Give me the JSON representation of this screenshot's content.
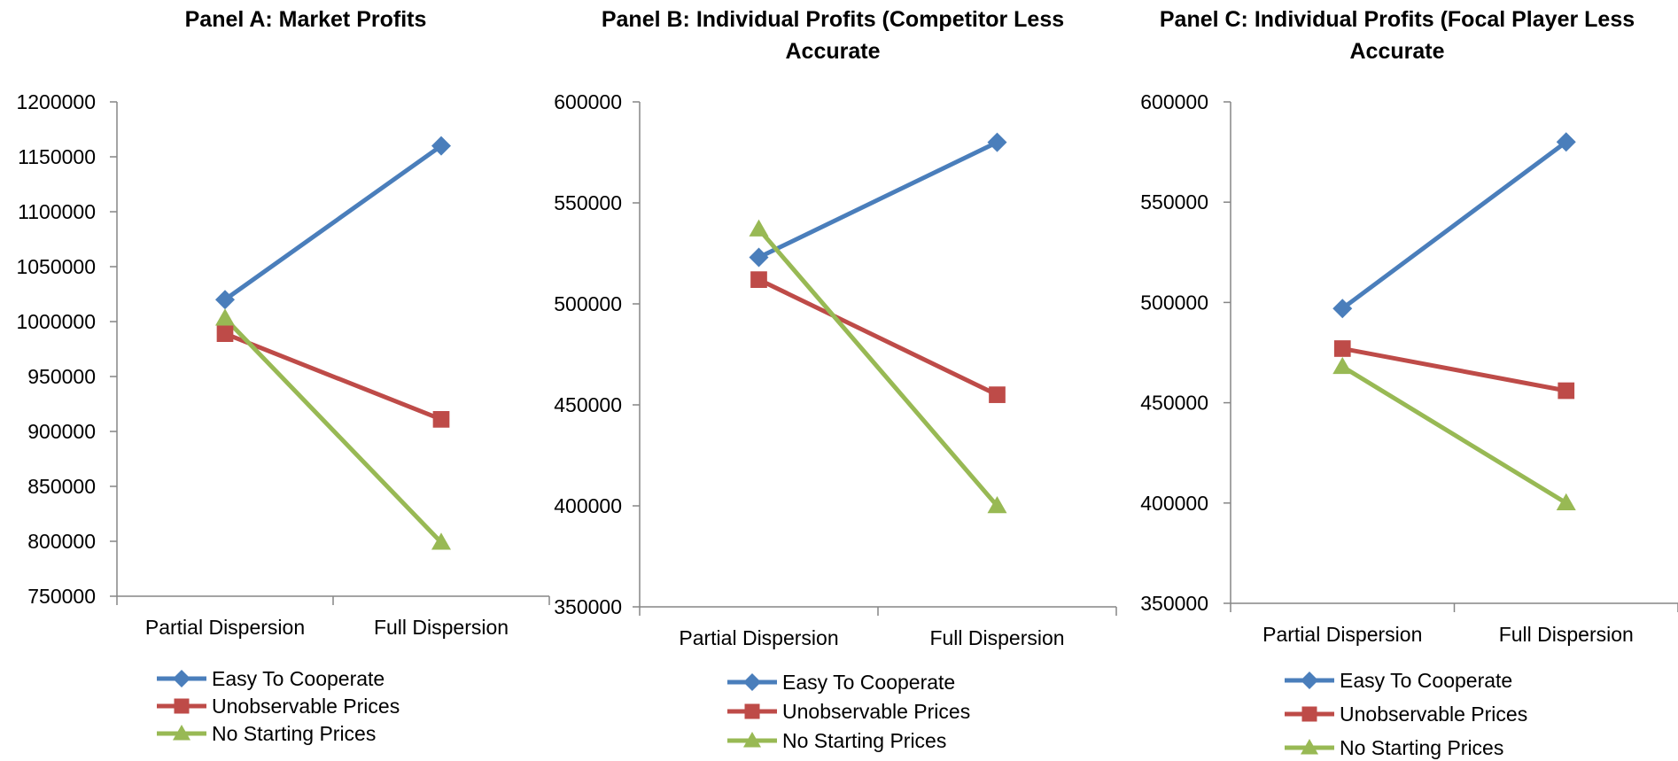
{
  "chart_data": [
    {
      "type": "line",
      "title": "Panel A: Market Profits",
      "categories": [
        "Partial Dispersion",
        "Full Dispersion"
      ],
      "ylim": [
        750000,
        1200000
      ],
      "yticks": [
        750000,
        800000,
        850000,
        900000,
        950000,
        1000000,
        1050000,
        1100000,
        1150000,
        1200000
      ],
      "legend_position": "bottom-left",
      "grid": false,
      "series": [
        {
          "name": "Easy To Cooperate",
          "values": [
            1020000,
            1160000
          ],
          "color": "#4a7ebb",
          "marker": "diamond"
        },
        {
          "name": "Unobservable Prices",
          "values": [
            989000,
            911000
          ],
          "color": "#be4b48",
          "marker": "square"
        },
        {
          "name": "No Starting Prices",
          "values": [
            1003000,
            799000
          ],
          "color": "#98b954",
          "marker": "triangle"
        }
      ]
    },
    {
      "type": "line",
      "title": "Panel B: Individual Profits (Competitor Less Accurate",
      "categories": [
        "Partial Dispersion",
        "Full Dispersion"
      ],
      "ylim": [
        350000,
        600000
      ],
      "yticks": [
        350000,
        400000,
        450000,
        500000,
        550000,
        600000
      ],
      "legend_position": "bottom-left",
      "grid": false,
      "series": [
        {
          "name": "Easy To Cooperate",
          "values": [
            523000,
            580000
          ],
          "color": "#4a7ebb",
          "marker": "diamond"
        },
        {
          "name": "Unobservable Prices",
          "values": [
            512000,
            455000
          ],
          "color": "#be4b48",
          "marker": "square"
        },
        {
          "name": "No Starting Prices",
          "values": [
            537000,
            400000
          ],
          "color": "#98b954",
          "marker": "triangle"
        }
      ]
    },
    {
      "type": "line",
      "title": "Panel C: Individual Profits (Focal Player Less Accurate",
      "categories": [
        "Partial Dispersion",
        "Full Dispersion"
      ],
      "ylim": [
        350000,
        600000
      ],
      "yticks": [
        350000,
        400000,
        450000,
        500000,
        550000,
        600000
      ],
      "legend_position": "bottom-left",
      "grid": false,
      "series": [
        {
          "name": "Easy To Cooperate",
          "values": [
            497000,
            580000
          ],
          "color": "#4a7ebb",
          "marker": "diamond"
        },
        {
          "name": "Unobservable Prices",
          "values": [
            477000,
            456000
          ],
          "color": "#be4b48",
          "marker": "square"
        },
        {
          "name": "No Starting Prices",
          "values": [
            468000,
            400000
          ],
          "color": "#98b954",
          "marker": "triangle"
        }
      ]
    }
  ]
}
